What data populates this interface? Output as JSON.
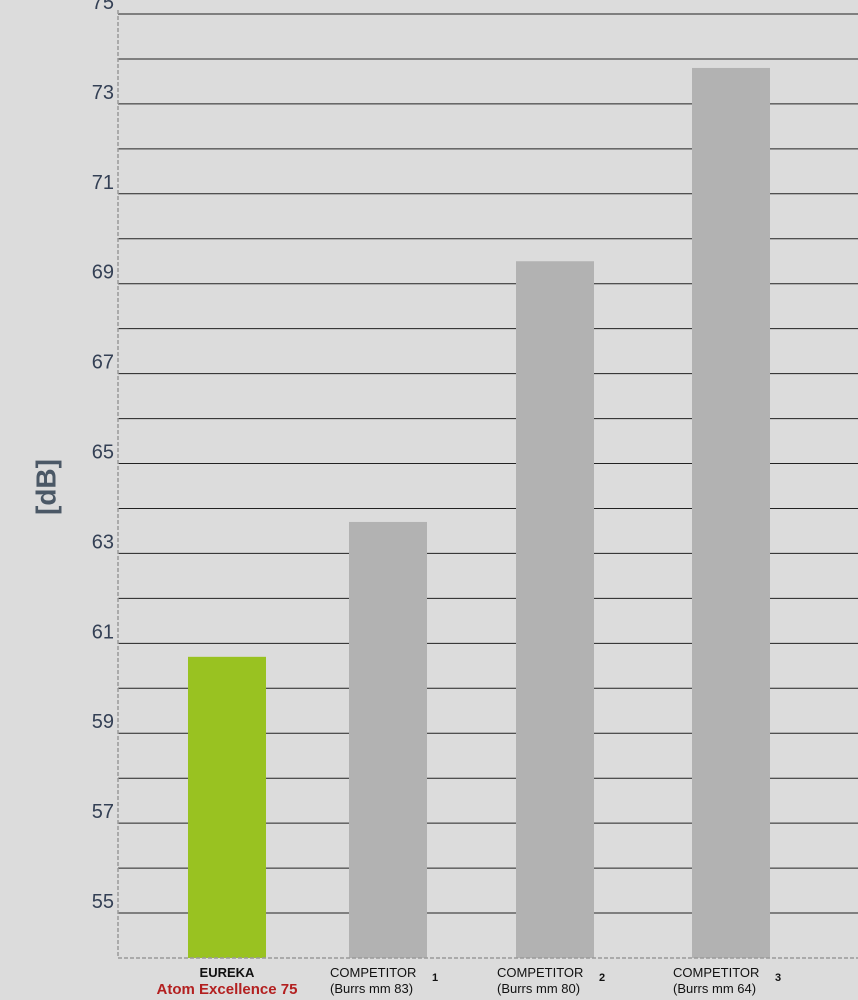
{
  "chart_data": {
    "type": "bar",
    "title": "",
    "xlabel": "",
    "ylabel": "[dB]",
    "ylim": [
      54,
      75
    ],
    "grid": true,
    "y_ticks": [
      55,
      57,
      59,
      61,
      63,
      65,
      67,
      69,
      71,
      73,
      75
    ],
    "y_tick_labels": [
      "55",
      "57",
      "59",
      "61",
      "63",
      "65",
      "67",
      "69",
      "71",
      "73",
      "75"
    ],
    "grid_step": 1,
    "categories": [
      {
        "name": "EUREKA",
        "number": "",
        "subtitle": "Atom Excellence 75",
        "value": 60.7,
        "color": "#99c221",
        "highlight": true
      },
      {
        "name": "COMPETITOR",
        "number": "1",
        "subtitle": "(Burrs mm 83)",
        "value": 63.7,
        "color": "#b2b2b2",
        "highlight": false
      },
      {
        "name": "COMPETITOR",
        "number": "2",
        "subtitle": "(Burrs mm 80)",
        "value": 69.5,
        "color": "#b2b2b2",
        "highlight": false
      },
      {
        "name": "COMPETITOR",
        "number": "3",
        "subtitle": "(Burrs mm 64)",
        "value": 73.8,
        "color": "#b2b2b2",
        "highlight": false
      }
    ],
    "colors": {
      "background": "#dcdcdc",
      "gridline": "#222222",
      "axis": "#9a9a9a",
      "highlight_bar": "#99c221",
      "competitor_bar": "#b2b2b2",
      "highlight_text": "#b32020"
    }
  }
}
